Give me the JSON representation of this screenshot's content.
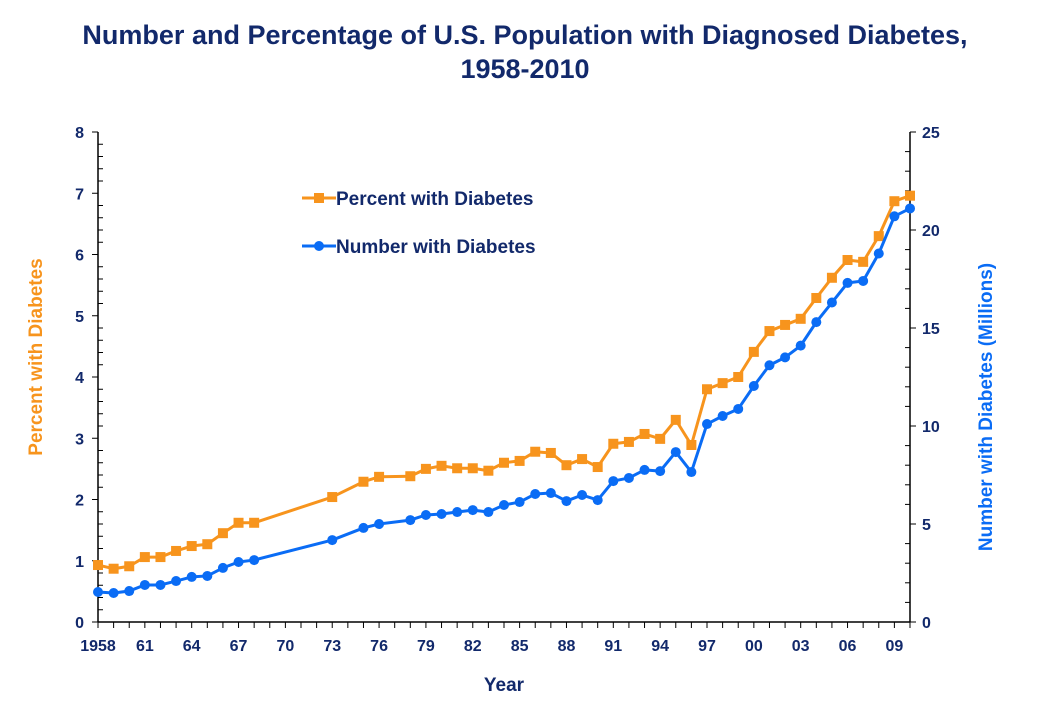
{
  "chart_data": {
    "type": "line",
    "title": "Number and Percentage of U.S. Population with Diagnosed Diabetes, 1958-2010",
    "title_lines": [
      "Number and Percentage of U.S. Population with Diagnosed Diabetes,",
      "1958-2010"
    ],
    "xlabel": "Year",
    "ylabel_left": "Percent with Diabetes",
    "ylabel_right": "Number with Diabetes (Millions)",
    "xlim": [
      1958,
      2010
    ],
    "ylim_left": [
      0,
      8
    ],
    "ylim_right": [
      0,
      25
    ],
    "x_ticks": [
      1958,
      1961,
      1964,
      1967,
      1970,
      1973,
      1976,
      1979,
      1982,
      1985,
      1988,
      1991,
      1994,
      1997,
      2000,
      2003,
      2006,
      2009
    ],
    "x_tick_labels": [
      "1958",
      "61",
      "64",
      "67",
      "70",
      "73",
      "76",
      "79",
      "82",
      "85",
      "88",
      "91",
      "94",
      "97",
      "00",
      "03",
      "06",
      "09"
    ],
    "y_left_ticks": [
      "0",
      "1",
      "2",
      "3",
      "4",
      "5",
      "6",
      "7",
      "8"
    ],
    "y_right_ticks": [
      "0",
      "5",
      "10",
      "15",
      "20",
      "25"
    ],
    "grid": false,
    "legend_placement": "top-left",
    "x": [
      1958,
      1959,
      1960,
      1961,
      1962,
      1963,
      1964,
      1965,
      1966,
      1967,
      1968,
      1973,
      1975,
      1976,
      1978,
      1979,
      1980,
      1981,
      1982,
      1983,
      1984,
      1985,
      1986,
      1987,
      1988,
      1989,
      1990,
      1991,
      1992,
      1993,
      1994,
      1995,
      1996,
      1997,
      1998,
      1999,
      2000,
      2001,
      2002,
      2003,
      2004,
      2005,
      2006,
      2007,
      2008,
      2009,
      2010
    ],
    "series": [
      {
        "name": "Percent with Diabetes",
        "axis": "left",
        "color": "#f7941d",
        "marker": "square",
        "values": [
          0.93,
          0.87,
          0.91,
          1.06,
          1.06,
          1.16,
          1.24,
          1.27,
          1.45,
          1.62,
          1.62,
          2.04,
          2.29,
          2.37,
          2.38,
          2.5,
          2.55,
          2.51,
          2.51,
          2.47,
          2.6,
          2.63,
          2.78,
          2.76,
          2.56,
          2.66,
          2.53,
          2.91,
          2.94,
          3.07,
          2.99,
          3.3,
          2.89,
          3.8,
          3.9,
          4.0,
          4.41,
          4.75,
          4.85,
          4.95,
          5.29,
          5.62,
          5.91,
          5.88,
          6.3,
          6.87,
          6.96
        ]
      },
      {
        "name": "Number with Diabetes",
        "axis": "right",
        "color": "#0a6cf5",
        "marker": "circle",
        "values": [
          1.53,
          1.48,
          1.58,
          1.89,
          1.89,
          2.09,
          2.3,
          2.35,
          2.76,
          3.06,
          3.16,
          4.18,
          4.8,
          5.0,
          5.2,
          5.46,
          5.51,
          5.61,
          5.71,
          5.61,
          5.97,
          6.12,
          6.53,
          6.58,
          6.17,
          6.48,
          6.22,
          7.19,
          7.35,
          7.76,
          7.7,
          8.67,
          7.65,
          10.1,
          10.51,
          10.87,
          12.04,
          13.1,
          13.5,
          14.1,
          15.3,
          16.3,
          17.3,
          17.4,
          18.8,
          20.7,
          21.1
        ]
      }
    ]
  }
}
